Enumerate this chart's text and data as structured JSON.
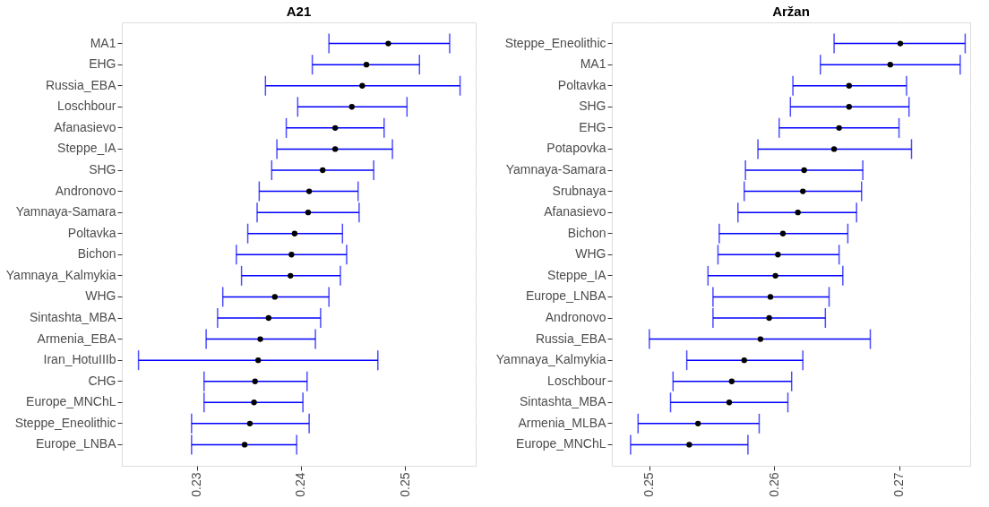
{
  "chart_data": [
    {
      "type": "scatter",
      "title": "A21",
      "orientation": "horizontal",
      "grid": true,
      "marker": "circle",
      "categories": [
        "MA1",
        "EHG",
        "Russia_EBA",
        "Loschbour",
        "Afanasievo",
        "Steppe_IA",
        "SHG",
        "Andronovo",
        "Yamnaya-Samara",
        "Poltavka",
        "Bichon",
        "Yamnaya_Kalmykia",
        "WHG",
        "Sintashta_MBA",
        "Armenia_EBA",
        "Iran_HotuIIIb",
        "CHG",
        "Europe_MNChL",
        "Steppe_Eneolithic",
        "Europe_LNBA"
      ],
      "xlim": [
        0.2228,
        0.2568
      ],
      "xticks": [
        0.23,
        0.24,
        0.25
      ],
      "series": [
        {
          "color": "#000000",
          "values": [
            0.2484,
            0.2463,
            0.2459,
            0.2449,
            0.2433,
            0.2433,
            0.2421,
            0.2408,
            0.2407,
            0.2394,
            0.2391,
            0.239,
            0.2375,
            0.2369,
            0.2361,
            0.2359,
            0.2356,
            0.2355,
            0.2351,
            0.2346
          ],
          "errors": [
            [
              0.2427,
              0.2543
            ],
            [
              0.2411,
              0.2514
            ],
            [
              0.2366,
              0.2553
            ],
            [
              0.2397,
              0.2502
            ],
            [
              0.2386,
              0.248
            ],
            [
              0.2377,
              0.2488
            ],
            [
              0.2372,
              0.247
            ],
            [
              0.236,
              0.2455
            ],
            [
              0.2358,
              0.2456
            ],
            [
              0.2349,
              0.244
            ],
            [
              0.2338,
              0.2444
            ],
            [
              0.2343,
              0.2438
            ],
            [
              0.2325,
              0.2427
            ],
            [
              0.232,
              0.2419
            ],
            [
              0.2309,
              0.2414
            ],
            [
              0.2244,
              0.2474
            ],
            [
              0.2307,
              0.2406
            ],
            [
              0.2307,
              0.2402
            ],
            [
              0.2295,
              0.2408
            ],
            [
              0.2295,
              0.2396
            ]
          ]
        }
      ]
    },
    {
      "type": "scatter",
      "title": "Aržan",
      "orientation": "horizontal",
      "grid": true,
      "marker": "circle",
      "categories": [
        "Steppe_Eneolithic",
        "MA1",
        "Poltavka",
        "SHG",
        "EHG",
        "Potapovka",
        "Yamnaya-Samara",
        "Srubnaya",
        "Afanasievo",
        "Bichon",
        "WHG",
        "Steppe_IA",
        "Europe_LNBA",
        "Andronovo",
        "Russia_EBA",
        "Yamnaya_Kalmykia",
        "Loschbour",
        "Sintashta_MBA",
        "Armenia_MLBA",
        "Europe_MNChL"
      ],
      "xlim": [
        0.247,
        0.2757
      ],
      "xticks": [
        0.25,
        0.26,
        0.27
      ],
      "series": [
        {
          "color": "#000000",
          "values": [
            0.2701,
            0.2693,
            0.266,
            0.266,
            0.2652,
            0.2648,
            0.2624,
            0.2623,
            0.2619,
            0.2607,
            0.2603,
            0.2601,
            0.2597,
            0.2596,
            0.2589,
            0.2576,
            0.2566,
            0.2564,
            0.2539,
            0.2532
          ],
          "errors": [
            [
              0.2648,
              0.2753
            ],
            [
              0.2637,
              0.2749
            ],
            [
              0.2615,
              0.2706
            ],
            [
              0.2613,
              0.2708
            ],
            [
              0.2604,
              0.27
            ],
            [
              0.2587,
              0.271
            ],
            [
              0.2577,
              0.2671
            ],
            [
              0.2576,
              0.267
            ],
            [
              0.2571,
              0.2666
            ],
            [
              0.2556,
              0.2659
            ],
            [
              0.2555,
              0.2652
            ],
            [
              0.2547,
              0.2655
            ],
            [
              0.2551,
              0.2644
            ],
            [
              0.2551,
              0.2641
            ],
            [
              0.25,
              0.2677
            ],
            [
              0.253,
              0.2623
            ],
            [
              0.2519,
              0.2614
            ],
            [
              0.2517,
              0.2611
            ],
            [
              0.2491,
              0.2588
            ],
            [
              0.2485,
              0.2579
            ]
          ]
        }
      ]
    }
  ]
}
